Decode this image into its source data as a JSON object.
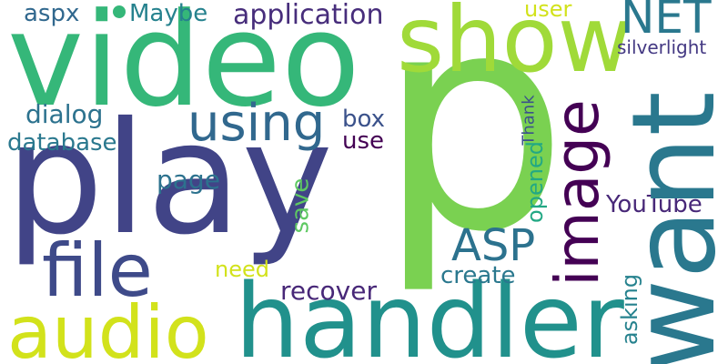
{
  "words": {
    "p": {
      "text": "p",
      "color": "#7ad151"
    },
    "video": {
      "text": "video",
      "color": "#35b779"
    },
    "play": {
      "text": "play",
      "color": "#414487"
    },
    "want": {
      "text": "want",
      "color": "#2a788e"
    },
    "handler": {
      "text": "handler",
      "color": "#21918c"
    },
    "show": {
      "text": "show",
      "color": "#a0da39"
    },
    "audio": {
      "text": "audio",
      "color": "#d2e21b"
    },
    "image": {
      "text": "image",
      "color": "#440154"
    },
    "file": {
      "text": "file",
      "color": "#3e4a89"
    },
    "using": {
      "text": "using",
      "color": "#31688e"
    },
    "NET": {
      "text": "NET",
      "color": "#2a788e"
    },
    "ASP": {
      "text": "ASP",
      "color": "#2c728e"
    },
    "application": {
      "text": "application",
      "color": "#472d7b"
    },
    "Maybe": {
      "text": "Maybe",
      "color": "#26828e"
    },
    "aspx": {
      "text": "aspx",
      "color": "#31688e"
    },
    "dialog": {
      "text": "dialog",
      "color": "#2c728e"
    },
    "database": {
      "text": "database",
      "color": "#2a788e"
    },
    "box": {
      "text": "box",
      "color": "#3b528b"
    },
    "use": {
      "text": "use",
      "color": "#440154"
    },
    "page": {
      "text": "page",
      "color": "#2c728e"
    },
    "save": {
      "text": "save",
      "color": "#5ec962"
    },
    "need": {
      "text": "need",
      "color": "#d2e21b"
    },
    "recover": {
      "text": "recover",
      "color": "#482878"
    },
    "create": {
      "text": "create",
      "color": "#2a788e"
    },
    "YouTube": {
      "text": "YouTube",
      "color": "#482878"
    },
    "opened": {
      "text": "opened",
      "color": "#22a884"
    },
    "asking": {
      "text": "asking",
      "color": "#26828e"
    },
    "Thank": {
      "text": "Thank",
      "color": "#3b528b"
    },
    "user": {
      "text": "user",
      "color": "#d2e21b"
    },
    "silverlight": {
      "text": "silverlight",
      "color": "#443983"
    }
  },
  "dot_color": "#35b779"
}
